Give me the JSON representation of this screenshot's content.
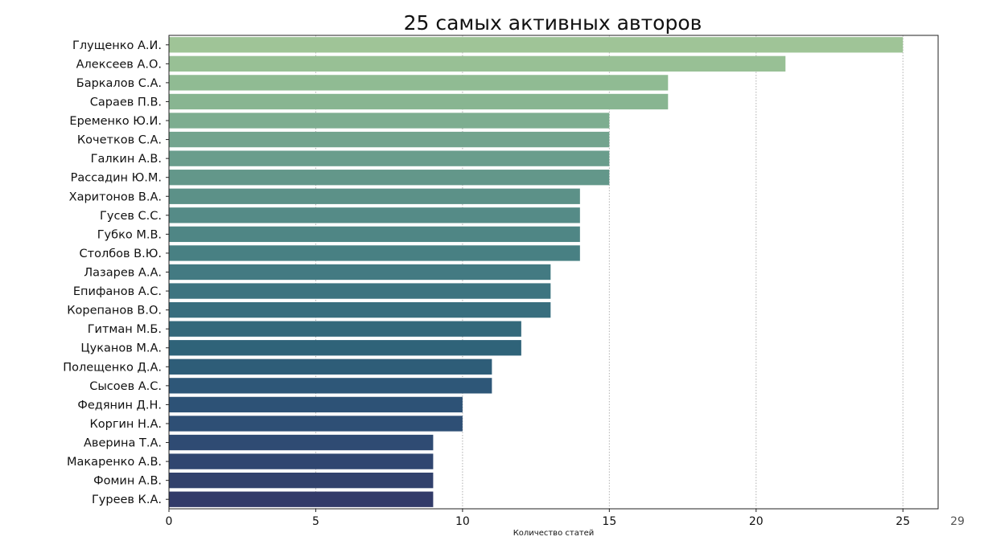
{
  "slide": {
    "page_number": "29"
  },
  "chart_data": {
    "type": "bar",
    "orientation": "horizontal",
    "title": "25 самых активных авторов",
    "xlabel": "Количество статей",
    "ylabel": "",
    "xlim": [
      0,
      26.2
    ],
    "xticks": [
      0,
      5,
      10,
      15,
      20,
      25
    ],
    "grid": "vertical dotted",
    "colormap": [
      "#9fc497",
      "#8bb892",
      "#6fa18d",
      "#5c9188",
      "#4a8284",
      "#3b727f",
      "#2f6379",
      "#2d5377",
      "#2f4a72",
      "#323b69"
    ],
    "categories": [
      "Глущенко А.И.",
      "Алексеев А.О.",
      "Баркалов С.А.",
      "Сараев П.В.",
      "Еременко Ю.И.",
      "Кочетков С.А.",
      "Галкин А.В.",
      "Рассадин Ю.М.",
      "Харитонов В.А.",
      "Гусев С.С.",
      "Губко М.В.",
      "Столбов В.Ю.",
      "Лазарев А.А.",
      "Епифанов А.С.",
      "Корепанов В.О.",
      "Гитман М.Б.",
      "Цуканов М.А.",
      "Полещенко Д.А.",
      "Сысоев А.С.",
      "Федянин Д.Н.",
      "Коргин Н.А.",
      "Аверина Т.А.",
      "Макаренко А.В.",
      "Фомин А.В.",
      "Гуреев К.А."
    ],
    "values": [
      25,
      21,
      17,
      17,
      15,
      15,
      15,
      15,
      14,
      14,
      14,
      14,
      13,
      13,
      13,
      12,
      12,
      11,
      11,
      10,
      10,
      9,
      9,
      9,
      9
    ]
  }
}
